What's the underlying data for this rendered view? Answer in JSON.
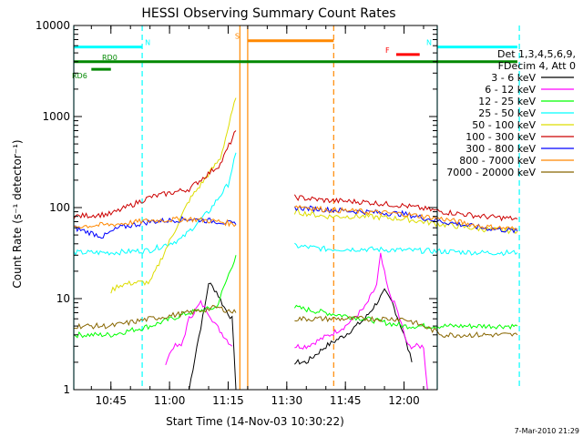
{
  "chart_data": {
    "type": "line",
    "title": "HESSI Observing Summary Count Rates",
    "xlabel": "Start Time (14-Nov-03 10:30:22)",
    "ylabel": "Count Rate (s⁻¹ detector⁻¹)",
    "y_scale": "log",
    "ylim": [
      1,
      10000
    ],
    "x_range_minutes": [
      10.5,
      103.5
    ],
    "x_ticks": [
      {
        "label": "10:45",
        "min": 45
      },
      {
        "label": "11:00",
        "min": 60
      },
      {
        "label": "11:15",
        "min": 75
      },
      {
        "label": "11:30",
        "min": 90
      },
      {
        "label": "11:45",
        "min": 105
      },
      {
        "label": "12:00",
        "min": 120
      }
    ],
    "y_ticks": [
      {
        "label": "1",
        "value": 1
      },
      {
        "label": "10",
        "value": 10
      },
      {
        "label": "100",
        "value": 100
      },
      {
        "label": "1000",
        "value": 1000
      },
      {
        "label": "10000",
        "value": 10000
      }
    ],
    "legend_header": [
      "Det 1,3,4,5,6,9,",
      "FDecim 4, Att 0"
    ],
    "legend_position": "right",
    "series": [
      {
        "name": "3 - 6 keV",
        "color": "#000000",
        "segments": [
          [
            [
              40,
              1
            ],
            [
              42,
              3
            ],
            [
              44,
              8
            ],
            [
              45,
              15
            ],
            [
              47,
              12
            ],
            [
              49,
              8
            ],
            [
              51,
              6
            ],
            [
              52,
              1
            ]
          ],
          [
            [
              67,
              2
            ],
            [
              70,
              2
            ],
            [
              75,
              3
            ],
            [
              80,
              4
            ],
            [
              85,
              6
            ],
            [
              88,
              9
            ],
            [
              90,
              12
            ],
            [
              92,
              9
            ],
            [
              95,
              4
            ],
            [
              97,
              2
            ]
          ]
        ]
      },
      {
        "name": "6 - 12 keV",
        "color": "#ff00ff",
        "segments": [
          [
            [
              34,
              2
            ],
            [
              36,
              3
            ],
            [
              38,
              3
            ],
            [
              40,
              6
            ],
            [
              43,
              9
            ],
            [
              45,
              7
            ],
            [
              47,
              5
            ],
            [
              51,
              3
            ]
          ],
          [
            [
              67,
              3
            ],
            [
              70,
              3
            ],
            [
              76,
              4
            ],
            [
              80,
              5
            ],
            [
              85,
              8
            ],
            [
              88,
              14
            ],
            [
              89,
              30
            ],
            [
              91,
              12
            ],
            [
              93,
              8
            ],
            [
              96,
              3
            ],
            [
              100,
              3
            ],
            [
              101,
              1
            ]
          ]
        ]
      },
      {
        "name": "12 - 25 keV",
        "color": "#00ff00",
        "segments": [
          [
            [
              10.5,
              4
            ],
            [
              20,
              4
            ],
            [
              30,
              5
            ],
            [
              40,
              7
            ],
            [
              47,
              8
            ],
            [
              52,
              30
            ]
          ],
          [
            [
              67,
              8
            ],
            [
              75,
              7
            ],
            [
              85,
              6
            ],
            [
              95,
              5
            ],
            [
              100,
              5
            ],
            [
              105,
              5
            ],
            [
              115,
              5
            ],
            [
              124,
              5
            ]
          ]
        ]
      },
      {
        "name": "25 - 50 keV",
        "color": "#00ffff",
        "segments": [
          [
            [
              10.5,
              32
            ],
            [
              20,
              32
            ],
            [
              30,
              34
            ],
            [
              38,
              45
            ],
            [
              45,
              90
            ],
            [
              50,
              180
            ],
            [
              52,
              400
            ]
          ],
          [
            [
              67,
              38
            ],
            [
              75,
              35
            ],
            [
              85,
              35
            ],
            [
              95,
              34
            ],
            [
              105,
              33
            ],
            [
              115,
              32
            ],
            [
              124,
              32
            ]
          ]
        ]
      },
      {
        "name": "50 - 100 keV",
        "color": "#dddd00",
        "segments": [
          [
            [
              20,
              12
            ],
            [
              22,
              14
            ],
            [
              26,
              15
            ],
            [
              30,
              15
            ],
            [
              40,
              120
            ],
            [
              48,
              350
            ],
            [
              52,
              1600
            ]
          ],
          [
            [
              67,
              90
            ],
            [
              75,
              80
            ],
            [
              85,
              80
            ],
            [
              95,
              75
            ],
            [
              105,
              65
            ],
            [
              115,
              58
            ],
            [
              124,
              55
            ]
          ]
        ]
      },
      {
        "name": "100 - 300 keV",
        "color": "#cc0000",
        "segments": [
          [
            [
              10.5,
              80
            ],
            [
              20,
              85
            ],
            [
              26,
              110
            ],
            [
              30,
              130
            ],
            [
              40,
              160
            ],
            [
              48,
              300
            ],
            [
              52,
              700
            ]
          ],
          [
            [
              67,
              130
            ],
            [
              75,
              120
            ],
            [
              85,
              115
            ],
            [
              95,
              105
            ],
            [
              105,
              90
            ],
            [
              115,
              80
            ],
            [
              124,
              75
            ]
          ]
        ]
      },
      {
        "name": "300 - 800 keV",
        "color": "#0000ff",
        "segments": [
          [
            [
              10.5,
              60
            ],
            [
              18,
              48
            ],
            [
              22,
              60
            ],
            [
              30,
              70
            ],
            [
              40,
              75
            ],
            [
              48,
              70
            ],
            [
              52,
              65
            ]
          ],
          [
            [
              67,
              100
            ],
            [
              75,
              95
            ],
            [
              85,
              90
            ],
            [
              95,
              85
            ],
            [
              105,
              70
            ],
            [
              115,
              60
            ],
            [
              124,
              55
            ]
          ]
        ]
      },
      {
        "name": "800 - 7000 keV",
        "color": "#ff8800",
        "segments": [
          [
            [
              10.5,
              62
            ],
            [
              20,
              65
            ],
            [
              30,
              72
            ],
            [
              40,
              75
            ],
            [
              48,
              70
            ],
            [
              52,
              65
            ]
          ],
          [
            [
              67,
              105
            ],
            [
              75,
              95
            ],
            [
              85,
              90
            ],
            [
              95,
              85
            ],
            [
              105,
              75
            ],
            [
              115,
              62
            ],
            [
              124,
              58
            ]
          ]
        ]
      },
      {
        "name": "7000 - 20000 keV",
        "color": "#886600",
        "segments": [
          [
            [
              10.5,
              5
            ],
            [
              20,
              5
            ],
            [
              30,
              6
            ],
            [
              40,
              7
            ],
            [
              47,
              8
            ],
            [
              52,
              7
            ]
          ],
          [
            [
              67,
              6
            ],
            [
              75,
              6
            ],
            [
              85,
              6
            ],
            [
              95,
              6
            ],
            [
              100,
              5
            ],
            [
              105,
              4
            ],
            [
              115,
              4
            ],
            [
              124,
              4
            ]
          ]
        ]
      }
    ],
    "annotations": {
      "flags": [
        {
          "label": "N",
          "color": "#00ffff",
          "x_min": [
            10.5,
            28
          ],
          "value": 5800
        },
        {
          "label": "N",
          "color": "#00ffff",
          "x_min": [
            103.5,
            124
          ],
          "value": 5800
        },
        {
          "label": "S",
          "color": "#ff8800",
          "x_min": [
            55,
            77
          ],
          "value": 6800
        },
        {
          "label": "F",
          "color": "#ff0000",
          "x_min": [
            93,
            99
          ],
          "value": 4800
        },
        {
          "label": "RD0",
          "color": "#008800",
          "x_min": [
            10.5,
            124
          ],
          "value": 4000
        },
        {
          "label": "RD6",
          "color": "#008800",
          "x_min": [
            15,
            20
          ],
          "value": 3300
        }
      ],
      "vlines": [
        {
          "x_min": 10.5,
          "color": "#00ffff",
          "style": "solid"
        },
        {
          "x_min": 28,
          "color": "#00ffff",
          "style": "dashed"
        },
        {
          "x_min": 53,
          "color": "#ff8800",
          "style": "solid"
        },
        {
          "x_min": 55,
          "color": "#ff8800",
          "style": "solid"
        },
        {
          "x_min": 77,
          "color": "#ff8800",
          "style": "dashed"
        },
        {
          "x_min": 103.5,
          "color": "#00ffff",
          "style": "solid"
        },
        {
          "x_min": 124.5,
          "color": "#00ffff",
          "style": "dashed"
        }
      ]
    }
  },
  "footer": {
    "timestamp": "7-Mar-2010 21:29"
  }
}
